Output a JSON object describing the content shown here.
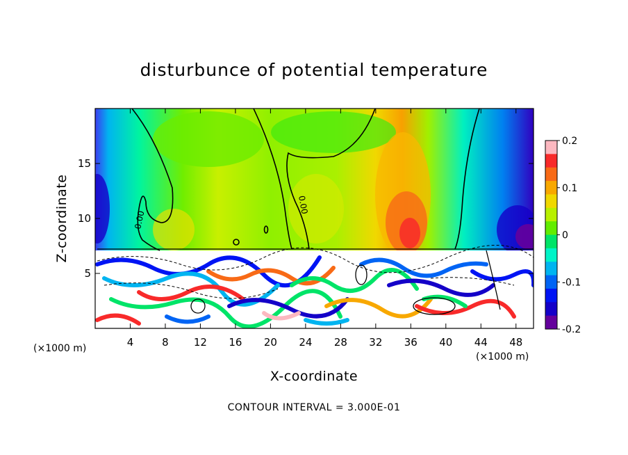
{
  "chart_data": {
    "type": "heatmap",
    "title": "disturbunce of potential temperature",
    "xlabel": "X-coordinate",
    "ylabel": "Z-coordinate",
    "x_unit": "(×1000 m)",
    "z_unit": "(×1000 m)",
    "xlim": [
      0,
      50
    ],
    "ylim": [
      0,
      20
    ],
    "x_ticks": [
      4,
      8,
      12,
      16,
      20,
      24,
      28,
      32,
      36,
      40,
      44,
      48
    ],
    "y_ticks": [
      5,
      10,
      15
    ],
    "colorbar": {
      "range": [
        -0.2,
        0.2
      ],
      "tick_values": [
        0.2,
        0.1,
        0,
        -0.1,
        -0.2
      ],
      "tick_labels": [
        "0.2",
        "0.1",
        "0",
        "-0.1",
        "-0.2"
      ],
      "colors": [
        "#fcb8c0",
        "#f82a2a",
        "#f86a16",
        "#f8a800",
        "#f0d800",
        "#b8f000",
        "#62ec00",
        "#00e468",
        "#00f4c8",
        "#00b4f0",
        "#0064f4",
        "#0014f4",
        "#1400c8",
        "#64009c"
      ]
    },
    "contour_labels": [
      "0.00",
      "0.00"
    ],
    "contour_interval": "CONTOUR INTERVAL = 3.000E-01"
  }
}
